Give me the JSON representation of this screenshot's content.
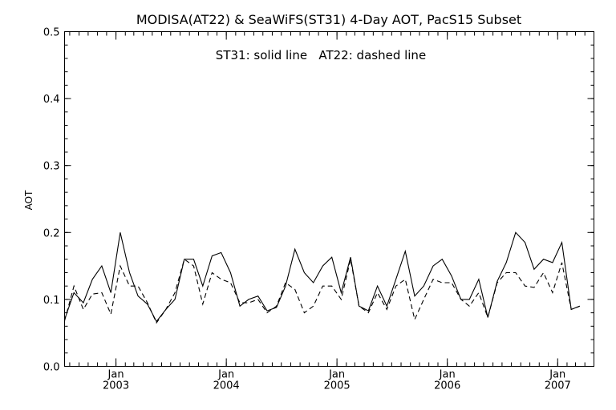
{
  "chart_data": {
    "type": "line",
    "title": "MODISA(AT22) & SeaWiFS(ST31) 4-Day AOT, PacS15 Subset",
    "annotation": "ST31: solid line   AT22: dashed line",
    "xlabel": "",
    "ylabel": "AOT",
    "xlim": [
      "2002-07-15",
      "2007-05-01"
    ],
    "ylim": [
      0.0,
      0.5
    ],
    "yticks": [
      0.0,
      0.1,
      0.2,
      0.3,
      0.4,
      0.5
    ],
    "yticklabels": [
      "0.0",
      "0.1",
      "0.2",
      "0.3",
      "0.4",
      "0.5"
    ],
    "xticks": [
      {
        "date": "2003-01-01",
        "month": "Jan",
        "year": "2003"
      },
      {
        "date": "2004-01-01",
        "month": "Jan",
        "year": "2004"
      },
      {
        "date": "2005-01-01",
        "month": "Jan",
        "year": "2005"
      },
      {
        "date": "2006-01-01",
        "month": "Jan",
        "year": "2006"
      },
      {
        "date": "2007-01-01",
        "month": "Jan",
        "year": "2007"
      }
    ],
    "grid": false,
    "legend": "none",
    "series": [
      {
        "line_style": "solid",
        "points": [
          [
            "2002-07-15",
            0.07
          ],
          [
            "2002-08-15",
            0.11
          ],
          [
            "2002-09-15",
            0.095
          ],
          [
            "2002-10-15",
            0.13
          ],
          [
            "2002-11-15",
            0.15
          ],
          [
            "2002-12-15",
            0.11
          ],
          [
            "2003-01-15",
            0.2
          ],
          [
            "2003-02-15",
            0.14
          ],
          [
            "2003-03-15",
            0.105
          ],
          [
            "2003-04-15",
            0.093
          ],
          [
            "2003-05-15",
            0.067
          ],
          [
            "2003-06-15",
            0.085
          ],
          [
            "2003-07-15",
            0.1
          ],
          [
            "2003-08-15",
            0.16
          ],
          [
            "2003-09-15",
            0.16
          ],
          [
            "2003-10-15",
            0.12
          ],
          [
            "2003-11-15",
            0.165
          ],
          [
            "2003-12-15",
            0.17
          ],
          [
            "2004-01-15",
            0.14
          ],
          [
            "2004-02-15",
            0.09
          ],
          [
            "2004-03-15",
            0.1
          ],
          [
            "2004-04-15",
            0.105
          ],
          [
            "2004-05-15",
            0.083
          ],
          [
            "2004-06-15",
            0.088
          ],
          [
            "2004-07-15",
            0.12
          ],
          [
            "2004-08-15",
            0.175
          ],
          [
            "2004-09-15",
            0.14
          ],
          [
            "2004-10-15",
            0.125
          ],
          [
            "2004-11-15",
            0.15
          ],
          [
            "2004-12-15",
            0.163
          ],
          [
            "2005-01-15",
            0.11
          ],
          [
            "2005-02-15",
            0.163
          ],
          [
            "2005-03-15",
            0.09
          ],
          [
            "2005-04-15",
            0.083
          ],
          [
            "2005-05-15",
            0.12
          ],
          [
            "2005-06-15",
            0.09
          ],
          [
            "2005-07-15",
            0.13
          ],
          [
            "2005-08-15",
            0.172
          ],
          [
            "2005-09-15",
            0.105
          ],
          [
            "2005-10-15",
            0.12
          ],
          [
            "2005-11-15",
            0.15
          ],
          [
            "2005-12-15",
            0.16
          ],
          [
            "2006-01-15",
            0.135
          ],
          [
            "2006-02-15",
            0.1
          ],
          [
            "2006-03-15",
            0.1
          ],
          [
            "2006-04-15",
            0.13
          ],
          [
            "2006-05-15",
            0.073
          ],
          [
            "2006-06-15",
            0.127
          ],
          [
            "2006-07-15",
            0.155
          ],
          [
            "2006-08-15",
            0.2
          ],
          [
            "2006-09-15",
            0.185
          ],
          [
            "2006-10-15",
            0.145
          ],
          [
            "2006-11-15",
            0.16
          ],
          [
            "2006-12-15",
            0.155
          ],
          [
            "2007-01-15",
            0.185
          ],
          [
            "2007-02-15",
            0.085
          ],
          [
            "2007-03-15",
            0.09
          ]
        ]
      },
      {
        "line_style": "dashed",
        "points": [
          [
            "2002-07-15",
            0.068
          ],
          [
            "2002-08-15",
            0.12
          ],
          [
            "2002-09-15",
            0.085
          ],
          [
            "2002-10-15",
            0.108
          ],
          [
            "2002-11-15",
            0.11
          ],
          [
            "2002-12-15",
            0.078
          ],
          [
            "2003-01-15",
            0.15
          ],
          [
            "2003-02-15",
            0.12
          ],
          [
            "2003-03-15",
            0.12
          ],
          [
            "2003-04-15",
            0.095
          ],
          [
            "2003-05-15",
            0.065
          ],
          [
            "2003-06-15",
            0.085
          ],
          [
            "2003-07-15",
            0.11
          ],
          [
            "2003-08-15",
            0.16
          ],
          [
            "2003-09-15",
            0.15
          ],
          [
            "2003-10-15",
            0.093
          ],
          [
            "2003-11-15",
            0.14
          ],
          [
            "2003-12-15",
            0.13
          ],
          [
            "2004-01-15",
            0.125
          ],
          [
            "2004-02-15",
            0.095
          ],
          [
            "2004-03-15",
            0.095
          ],
          [
            "2004-04-15",
            0.1
          ],
          [
            "2004-05-15",
            0.08
          ],
          [
            "2004-06-15",
            0.09
          ],
          [
            "2004-07-15",
            0.125
          ],
          [
            "2004-08-15",
            0.115
          ],
          [
            "2004-09-15",
            0.08
          ],
          [
            "2004-10-15",
            0.09
          ],
          [
            "2004-11-15",
            0.12
          ],
          [
            "2004-12-15",
            0.12
          ],
          [
            "2005-01-15",
            0.1
          ],
          [
            "2005-02-15",
            0.16
          ],
          [
            "2005-03-15",
            0.09
          ],
          [
            "2005-04-15",
            0.08
          ],
          [
            "2005-05-15",
            0.11
          ],
          [
            "2005-06-15",
            0.085
          ],
          [
            "2005-07-15",
            0.12
          ],
          [
            "2005-08-15",
            0.13
          ],
          [
            "2005-09-15",
            0.07
          ],
          [
            "2005-10-15",
            0.1
          ],
          [
            "2005-11-15",
            0.13
          ],
          [
            "2005-12-15",
            0.125
          ],
          [
            "2006-01-15",
            0.125
          ],
          [
            "2006-02-15",
            0.1
          ],
          [
            "2006-03-15",
            0.09
          ],
          [
            "2006-04-15",
            0.11
          ],
          [
            "2006-05-15",
            0.073
          ],
          [
            "2006-06-15",
            0.125
          ],
          [
            "2006-07-15",
            0.14
          ],
          [
            "2006-08-15",
            0.14
          ],
          [
            "2006-09-15",
            0.12
          ],
          [
            "2006-10-15",
            0.118
          ],
          [
            "2006-11-15",
            0.14
          ],
          [
            "2006-12-15",
            0.11
          ],
          [
            "2007-01-15",
            0.155
          ],
          [
            "2007-02-15",
            0.085
          ],
          [
            "2007-03-15",
            0.09
          ]
        ]
      }
    ]
  }
}
